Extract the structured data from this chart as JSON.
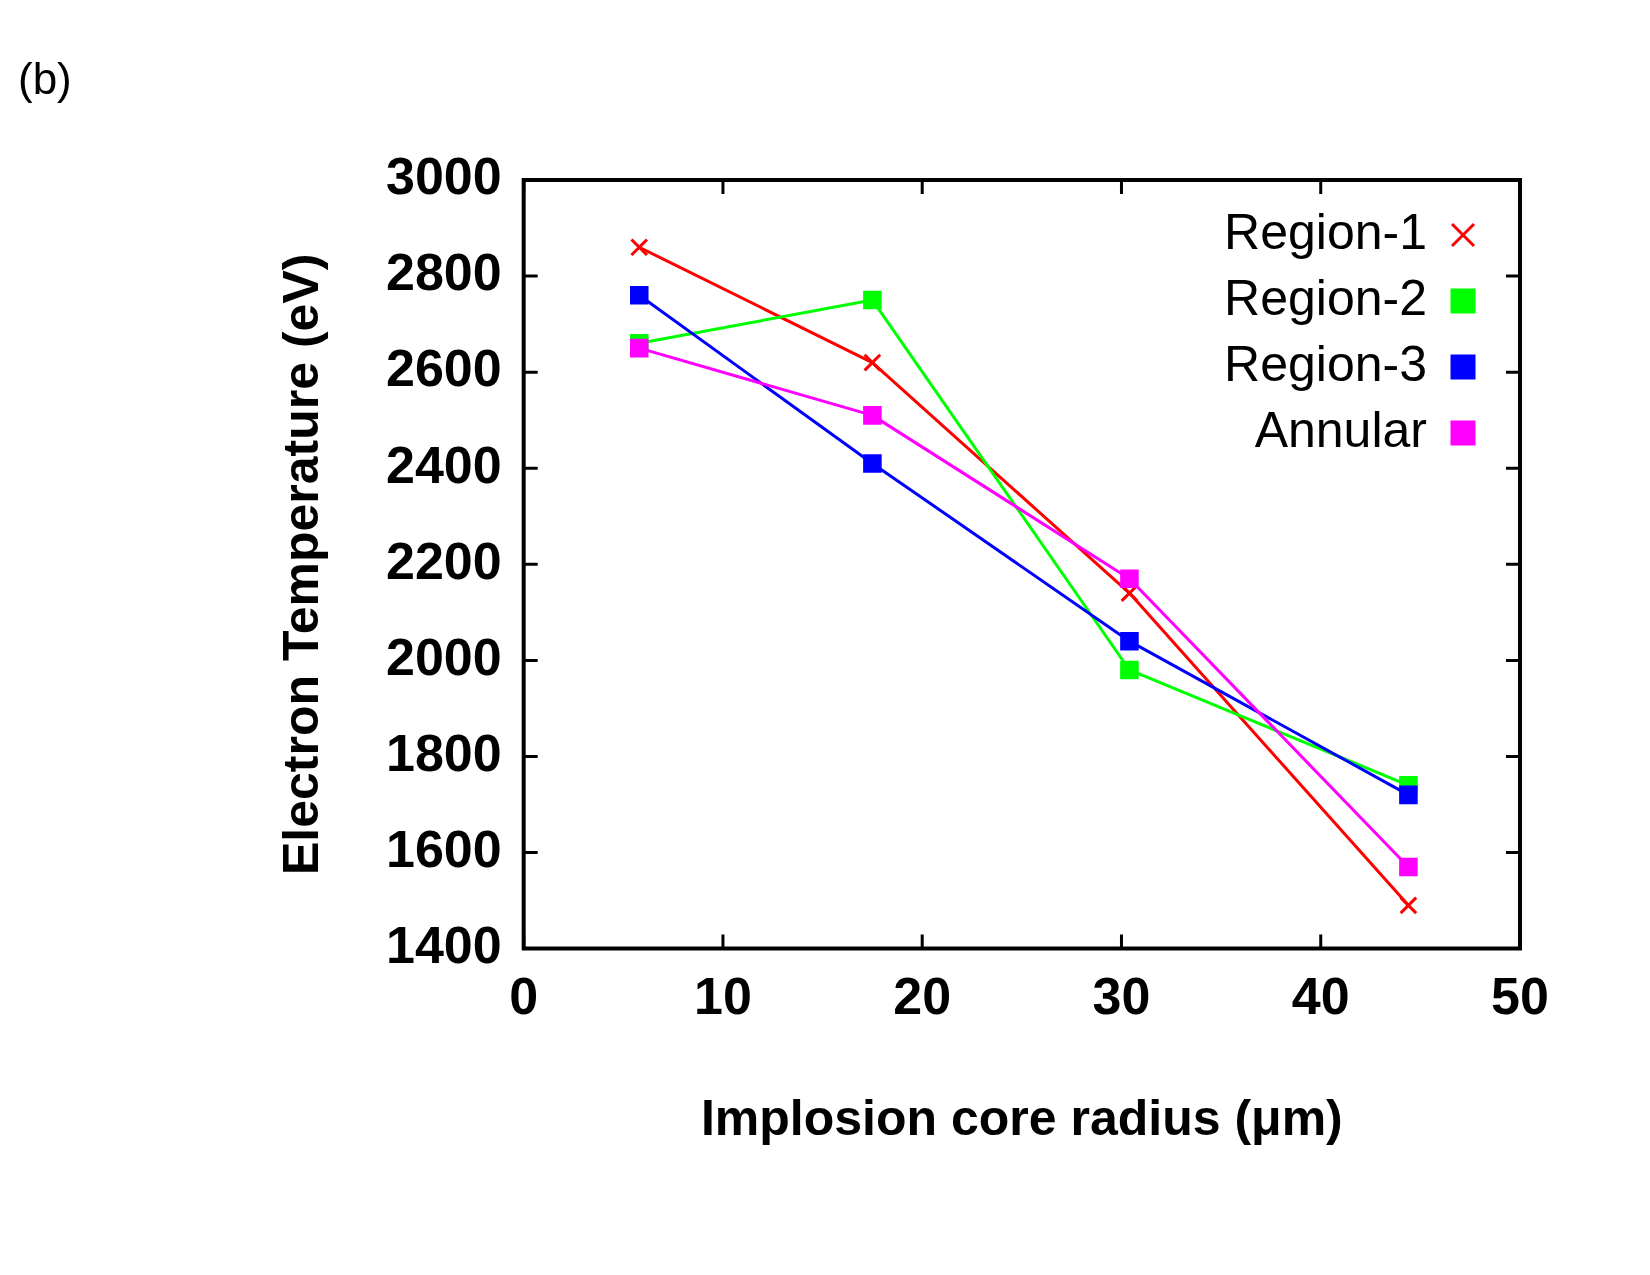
{
  "chart_data": {
    "type": "line",
    "xlabel": "Implosion core radius (μm)",
    "ylabel": "Electron Temperature (eV)",
    "annotations": [
      "(b)"
    ],
    "x": [
      5.8,
      17.5,
      30.4,
      44.4
    ],
    "series": [
      {
        "name": "Region-1",
        "color": "#ff0000",
        "marker": "cross",
        "values": [
          2860,
          2620,
          2140,
          1490
        ]
      },
      {
        "name": "Region-2",
        "color": "#00ff00",
        "marker": "square",
        "values": [
          2660,
          2750,
          1980,
          1740
        ]
      },
      {
        "name": "Region-3",
        "color": "#0000ff",
        "marker": "square",
        "values": [
          2760,
          2410,
          2040,
          1720
        ]
      },
      {
        "name": "Annular",
        "color": "#ff00ff",
        "marker": "square",
        "values": [
          2650,
          2510,
          2170,
          1570
        ]
      }
    ],
    "xlim": [
      0,
      50
    ],
    "xticks": [
      0,
      10,
      20,
      30,
      40,
      50
    ],
    "ylim": [
      1400,
      3000
    ],
    "yticks": [
      1400,
      1600,
      1800,
      2000,
      2200,
      2400,
      2600,
      2800,
      3000
    ],
    "grid": false,
    "legend": "top right",
    "line_style": "solid"
  }
}
